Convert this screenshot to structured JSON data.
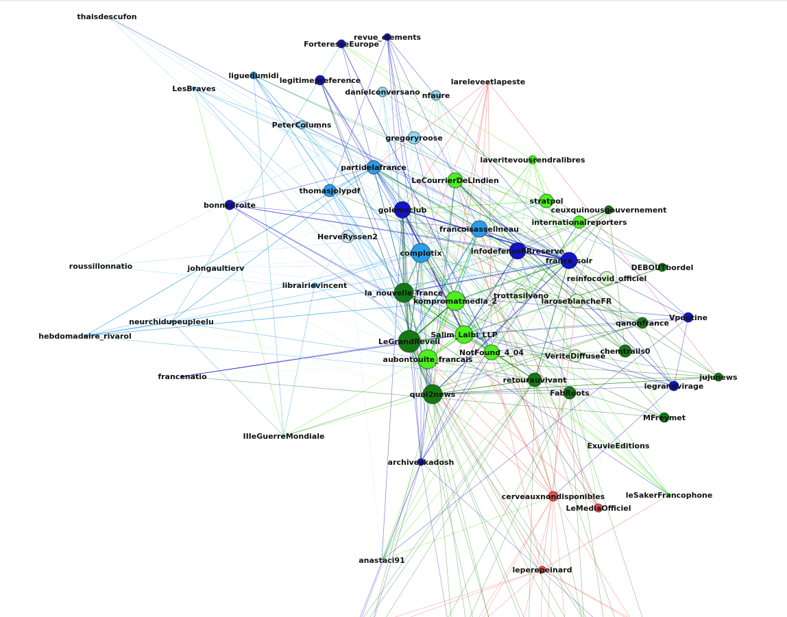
{
  "colors": {
    "dark_blue": "#1414c8",
    "sky_blue": "#2a9de8",
    "light_blue": "#8fd6f2",
    "pale_blue": "#cdeaf4",
    "bright_green": "#4cf01c",
    "dark_green": "#137a13",
    "pale_green": "#dbf6cf",
    "red": "#f04e4e"
  },
  "nodes": [
    {
      "label": "thaisdescufon",
      "group": "light_blue"
    },
    {
      "label": "revue_elements",
      "group": "dark_blue"
    },
    {
      "label": "ForteresseEurope",
      "group": "dark_blue"
    },
    {
      "label": "liguedumidi",
      "group": "sky_blue"
    },
    {
      "label": "legitimepreference",
      "group": "dark_blue"
    },
    {
      "label": "LesBraves",
      "group": "sky_blue"
    },
    {
      "label": "danielconversano",
      "group": "light_blue"
    },
    {
      "label": "nfaure",
      "group": "light_blue"
    },
    {
      "label": "lareleveetlapeste",
      "group": "red"
    },
    {
      "label": "PeterColumns",
      "group": "light_blue"
    },
    {
      "label": "gregoryroose",
      "group": "light_blue"
    },
    {
      "label": "laveritevousrendralibres",
      "group": "bright_green"
    },
    {
      "label": "partidelafrance",
      "group": "sky_blue"
    },
    {
      "label": "LeCourrierDeLindien",
      "group": "bright_green"
    },
    {
      "label": "thomasjolypdf",
      "group": "sky_blue"
    },
    {
      "label": "bonnedroite",
      "group": "dark_blue"
    },
    {
      "label": "stratpol",
      "group": "bright_green"
    },
    {
      "label": "golemsclub",
      "group": "dark_blue"
    },
    {
      "label": "ceuxquinousgouvernement",
      "group": "dark_green"
    },
    {
      "label": "internationalreporters",
      "group": "bright_green"
    },
    {
      "label": "francoisasselineau",
      "group": "sky_blue"
    },
    {
      "label": "HerveRyssen2",
      "group": "pale_blue"
    },
    {
      "label": "complotix",
      "group": "sky_blue"
    },
    {
      "label": "infodefenseFRreserve",
      "group": "dark_blue"
    },
    {
      "label": "france_soir",
      "group": "dark_blue"
    },
    {
      "label": "roussillonnatio",
      "group": "light_blue"
    },
    {
      "label": "johngaultierv",
      "group": "pale_blue"
    },
    {
      "label": "DEBOUTbordel",
      "group": "dark_green"
    },
    {
      "label": "reinfocovid_officiel",
      "group": "pale_green"
    },
    {
      "label": "librairievincent",
      "group": "sky_blue"
    },
    {
      "label": "la_nouvelle_france",
      "group": "dark_green"
    },
    {
      "label": "trottasilvano",
      "group": "pale_green"
    },
    {
      "label": "kompromatmedia_2",
      "group": "bright_green"
    },
    {
      "label": "laroseblancheFR",
      "group": "pale_green"
    },
    {
      "label": "qanonfrance",
      "group": "dark_green"
    },
    {
      "label": "Vpoutine",
      "group": "dark_blue"
    },
    {
      "label": "neurchidupeupleelu",
      "group": "sky_blue"
    },
    {
      "label": "hebdomadaire_rivarol",
      "group": "sky_blue"
    },
    {
      "label": "Salim_Laibi_LLP",
      "group": "bright_green"
    },
    {
      "label": "LeGrandReveil",
      "group": "dark_green"
    },
    {
      "label": "NotFound_4_04",
      "group": "bright_green"
    },
    {
      "label": "VeriteDiffusee",
      "group": "pale_green"
    },
    {
      "label": "chemtrails0",
      "group": "dark_green"
    },
    {
      "label": "aubontouite_francais",
      "group": "bright_green"
    },
    {
      "label": "jujunews",
      "group": "dark_green"
    },
    {
      "label": "retourauvivant",
      "group": "dark_green"
    },
    {
      "label": "francenatio",
      "group": "dark_blue"
    },
    {
      "label": "legrandvirage",
      "group": "dark_blue"
    },
    {
      "label": "FabRoots",
      "group": "dark_green"
    },
    {
      "label": "quoi2news",
      "group": "dark_green"
    },
    {
      "label": "MFreymet",
      "group": "dark_green"
    },
    {
      "label": "IIIeGuerreMondiale",
      "group": "bright_green"
    },
    {
      "label": "ExuvieEditions",
      "group": "pale_green"
    },
    {
      "label": "archiveskadosh",
      "group": "dark_blue"
    },
    {
      "label": "leSakerFrancophone",
      "group": "bright_green"
    },
    {
      "label": "cerveauxnondisponibles",
      "group": "red"
    },
    {
      "label": "LeMediaOfficiel",
      "group": "red"
    },
    {
      "label": "anastaci91",
      "group": "bright_green"
    },
    {
      "label": "leperepeinard",
      "group": "red"
    }
  ]
}
